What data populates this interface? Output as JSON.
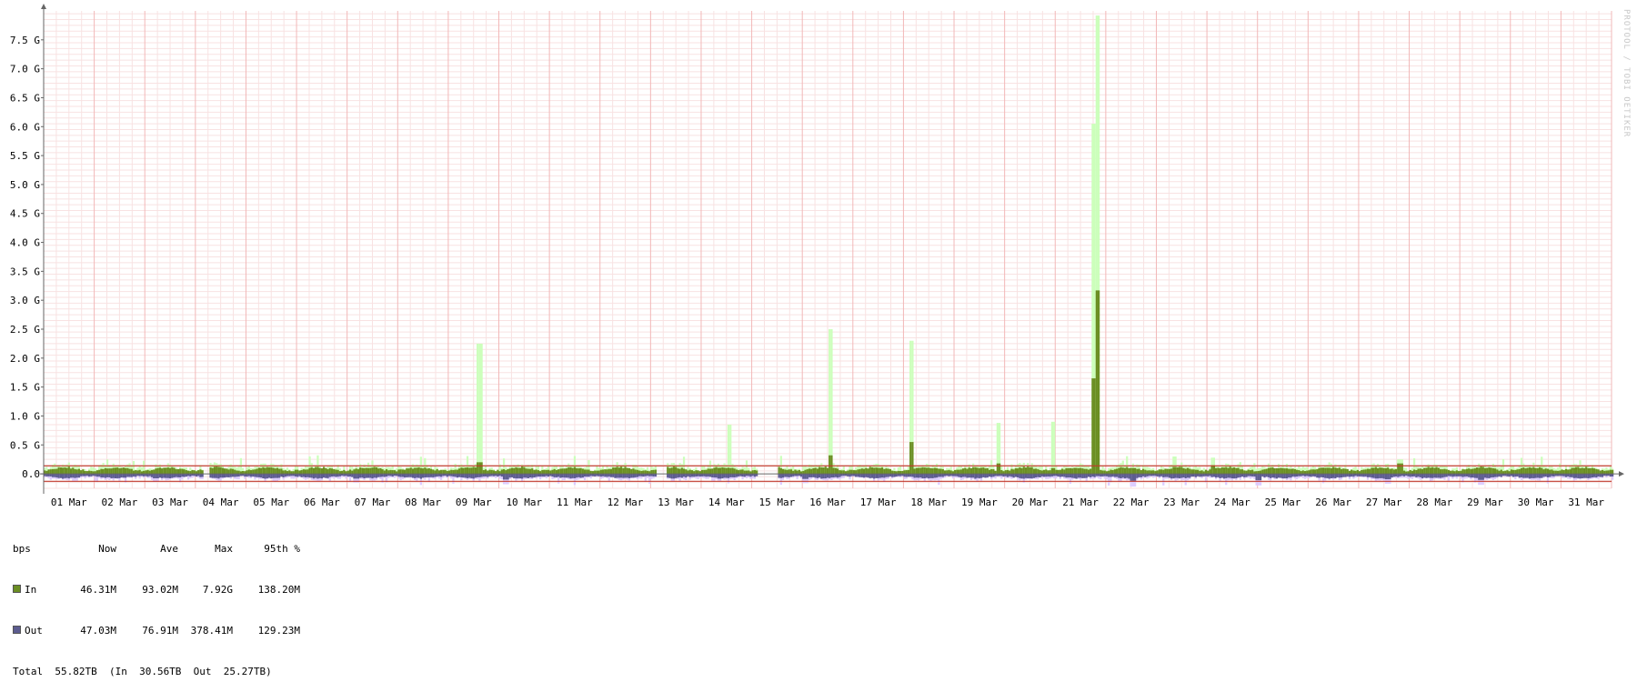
{
  "chart_data": {
    "type": "area",
    "unit": "bps",
    "ylim": [
      -0.25,
      8.0
    ],
    "yticks": [
      0.0,
      0.5,
      1.0,
      1.5,
      2.0,
      2.5,
      3.0,
      3.5,
      4.0,
      4.5,
      5.0,
      5.5,
      6.0,
      6.5,
      7.0,
      7.5
    ],
    "ytick_labels": [
      "0.0",
      "0.5 G",
      "1.0 G",
      "1.5 G",
      "2.0 G",
      "2.5 G",
      "3.0 G",
      "3.5 G",
      "4.0 G",
      "4.5 G",
      "5.0 G",
      "5.5 G",
      "6.0 G",
      "6.5 G",
      "7.0 G",
      "7.5 G"
    ],
    "x_labels": [
      "01 Mar",
      "02 Mar",
      "03 Mar",
      "04 Mar",
      "05 Mar",
      "06 Mar",
      "07 Mar",
      "08 Mar",
      "09 Mar",
      "10 Mar",
      "11 Mar",
      "12 Mar",
      "13 Mar",
      "14 Mar",
      "15 Mar",
      "16 Mar",
      "17 Mar",
      "18 Mar",
      "19 Mar",
      "20 Mar",
      "21 Mar",
      "22 Mar",
      "23 Mar",
      "24 Mar",
      "25 Mar",
      "26 Mar",
      "27 Mar",
      "28 Mar",
      "29 Mar",
      "30 Mar",
      "31 Mar"
    ],
    "grid": true,
    "gaps_days": [
      [
        3.15,
        3.25
      ],
      [
        12.1,
        12.3
      ],
      [
        14.1,
        14.5
      ]
    ],
    "percentile_lines": [
      0.138,
      -0.129
    ],
    "series": [
      {
        "name": "In",
        "color": "#6b8e23",
        "max_color": "#ccffbb",
        "typical": 0.08,
        "peaks": [
          [
            8.6,
            0.2,
            2.25
          ],
          [
            13.55,
            0.08,
            0.85
          ],
          [
            15.55,
            0.32,
            2.5
          ],
          [
            17.15,
            0.55,
            2.3
          ],
          [
            18.85,
            0.18,
            0.88
          ],
          [
            19.95,
            0.1,
            0.9
          ],
          [
            20.75,
            1.65,
            6.05
          ],
          [
            20.82,
            3.17,
            7.92
          ],
          [
            22.35,
            0.12,
            0.3
          ],
          [
            23.1,
            0.15,
            0.28
          ],
          [
            26.8,
            0.18,
            0.25
          ]
        ]
      },
      {
        "name": "Out",
        "color": "#5c5c8f",
        "max_color": "#ddccff",
        "typical": 0.06,
        "dips": [
          [
            0.6,
            0.12
          ],
          [
            2.2,
            0.14
          ],
          [
            4.55,
            0.13
          ],
          [
            6.15,
            0.15
          ],
          [
            9.1,
            0.18
          ],
          [
            15.05,
            0.16
          ],
          [
            21.5,
            0.22
          ],
          [
            24.0,
            0.2
          ],
          [
            26.55,
            0.17
          ],
          [
            28.4,
            0.19
          ]
        ]
      }
    ]
  },
  "legend": {
    "header": {
      "label": "bps",
      "now": "Now",
      "ave": "Ave",
      "max": "Max",
      "p95": "95th %"
    },
    "in": {
      "label": "In",
      "now": "46.31M",
      "ave": "93.02M",
      "max": "7.92G",
      "p95": "138.20M"
    },
    "out": {
      "label": "Out",
      "now": "47.03M",
      "ave": "76.91M",
      "max": "378.41M",
      "p95": "129.23M"
    },
    "total": "Total  55.82TB  (In  30.56TB  Out  25.27TB)"
  },
  "watermark": "PROTOOL / TOBI OETIKER"
}
